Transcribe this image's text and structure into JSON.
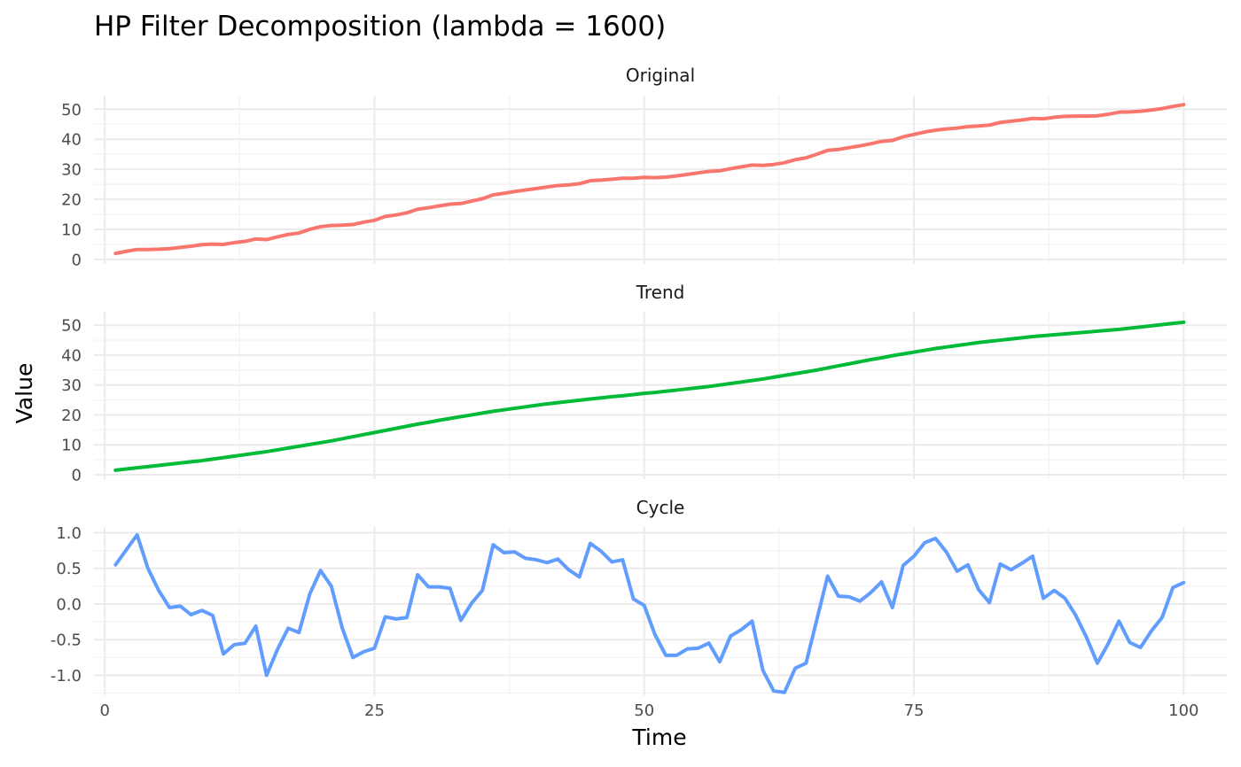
{
  "chart_data": {
    "type": "line",
    "title": "HP Filter Decomposition (lambda = 1600)",
    "xlabel": "Time",
    "ylabel": "Value",
    "x": [
      1,
      2,
      3,
      4,
      5,
      6,
      7,
      8,
      9,
      10,
      11,
      12,
      13,
      14,
      15,
      16,
      17,
      18,
      19,
      20,
      21,
      22,
      23,
      24,
      25,
      26,
      27,
      28,
      29,
      30,
      31,
      32,
      33,
      34,
      35,
      36,
      37,
      38,
      39,
      40,
      41,
      42,
      43,
      44,
      45,
      46,
      47,
      48,
      49,
      50,
      51,
      52,
      53,
      54,
      55,
      56,
      57,
      58,
      59,
      60,
      61,
      62,
      63,
      64,
      65,
      66,
      67,
      68,
      69,
      70,
      71,
      72,
      73,
      74,
      75,
      76,
      77,
      78,
      79,
      80,
      81,
      82,
      83,
      84,
      85,
      86,
      87,
      88,
      89,
      90,
      91,
      92,
      93,
      94,
      95,
      96,
      97,
      98,
      99,
      100
    ],
    "xlim": [
      -1,
      104
    ],
    "x_ticks": [
      {
        "value": 0,
        "label": "0"
      },
      {
        "value": 25,
        "label": "25"
      },
      {
        "value": 50,
        "label": "50"
      },
      {
        "value": 75,
        "label": "75"
      },
      {
        "value": 100,
        "label": "100"
      }
    ],
    "x_minor_ticks": [
      12.5,
      37.5,
      62.5,
      87.5
    ],
    "grid": true,
    "legend": "none",
    "panels": [
      {
        "name": "Original",
        "color": "#F8766D",
        "ylim": [
          -1.5,
          54.5
        ],
        "y_ticks": [
          {
            "value": 0,
            "label": "0"
          },
          {
            "value": 10,
            "label": "10"
          },
          {
            "value": 20,
            "label": "20"
          },
          {
            "value": 30,
            "label": "30"
          },
          {
            "value": 40,
            "label": "40"
          },
          {
            "value": 50,
            "label": "50"
          }
        ],
        "y_minor_ticks": [
          5,
          15,
          25,
          35,
          45
        ],
        "values": [
          2.0,
          2.7,
          3.3,
          3.3,
          3.4,
          3.6,
          4.0,
          4.4,
          4.9,
          5.1,
          5.0,
          5.6,
          6.0,
          6.8,
          6.6,
          7.5,
          8.3,
          8.8,
          10.0,
          10.9,
          11.3,
          11.4,
          11.6,
          12.4,
          13.0,
          14.3,
          14.8,
          15.5,
          16.7,
          17.2,
          17.8,
          18.4,
          18.6,
          19.4,
          20.2,
          21.5,
          22.0,
          22.6,
          23.1,
          23.6,
          24.1,
          24.6,
          24.8,
          25.2,
          26.2,
          26.4,
          26.7,
          27.0,
          27.0,
          27.3,
          27.2,
          27.4,
          27.8,
          28.3,
          28.8,
          29.3,
          29.5,
          30.2,
          30.8,
          31.4,
          31.3,
          31.6,
          32.2,
          33.2,
          33.8,
          35.0,
          36.3,
          36.6,
          37.2,
          37.8,
          38.5,
          39.3,
          39.6,
          40.8,
          41.6,
          42.4,
          43.0,
          43.4,
          43.7,
          44.2,
          44.4,
          44.7,
          45.6,
          46.0,
          46.4,
          46.9,
          46.8,
          47.3,
          47.6,
          47.7,
          47.7,
          47.8,
          48.3,
          49.0,
          49.1,
          49.3,
          49.7,
          50.2,
          50.9,
          51.5
        ]
      },
      {
        "name": "Trend",
        "color": "#00BA38",
        "ylim": [
          -1.5,
          54.5
        ],
        "y_ticks": [
          {
            "value": 0,
            "label": "0"
          },
          {
            "value": 10,
            "label": "10"
          },
          {
            "value": 20,
            "label": "20"
          },
          {
            "value": 30,
            "label": "30"
          },
          {
            "value": 40,
            "label": "40"
          },
          {
            "value": 50,
            "label": "50"
          }
        ],
        "y_minor_ticks": [
          5,
          15,
          25,
          35,
          45
        ],
        "values": [
          1.5,
          1.9,
          2.3,
          2.7,
          3.1,
          3.5,
          3.9,
          4.3,
          4.7,
          5.2,
          5.7,
          6.2,
          6.7,
          7.2,
          7.7,
          8.3,
          8.9,
          9.5,
          10.1,
          10.7,
          11.3,
          12.0,
          12.7,
          13.4,
          14.1,
          14.8,
          15.5,
          16.2,
          16.9,
          17.5,
          18.2,
          18.8,
          19.4,
          20.0,
          20.6,
          21.2,
          21.7,
          22.2,
          22.7,
          23.2,
          23.7,
          24.1,
          24.5,
          24.9,
          25.3,
          25.7,
          26.1,
          26.4,
          26.8,
          27.2,
          27.5,
          27.9,
          28.3,
          28.7,
          29.1,
          29.5,
          30.0,
          30.5,
          31.0,
          31.5,
          32.0,
          32.6,
          33.2,
          33.8,
          34.4,
          35.0,
          35.7,
          36.4,
          37.1,
          37.8,
          38.5,
          39.1,
          39.8,
          40.4,
          41.0,
          41.6,
          42.2,
          42.7,
          43.2,
          43.7,
          44.2,
          44.6,
          45.0,
          45.4,
          45.8,
          46.2,
          46.5,
          46.8,
          47.1,
          47.4,
          47.7,
          48.0,
          48.3,
          48.6,
          49.0,
          49.4,
          49.8,
          50.2,
          50.6,
          51.0
        ]
      },
      {
        "name": "Cycle",
        "color": "#619CFF",
        "ylim": [
          -1.28,
          1.08
        ],
        "y_ticks": [
          {
            "value": -1.0,
            "label": "-1.0"
          },
          {
            "value": -0.5,
            "label": "-0.5"
          },
          {
            "value": 0.0,
            "label": "0.0"
          },
          {
            "value": 0.5,
            "label": "0.5"
          },
          {
            "value": 1.0,
            "label": "1.0"
          }
        ],
        "y_minor_ticks": [
          -1.25,
          -0.75,
          -0.25,
          0.25,
          0.75
        ],
        "values": [
          0.55,
          0.76,
          0.97,
          0.5,
          0.19,
          -0.05,
          -0.03,
          -0.15,
          -0.09,
          -0.16,
          -0.7,
          -0.57,
          -0.55,
          -0.31,
          -1.0,
          -0.64,
          -0.34,
          -0.4,
          0.14,
          0.47,
          0.25,
          -0.33,
          -0.75,
          -0.67,
          -0.62,
          -0.18,
          -0.21,
          -0.19,
          0.41,
          0.24,
          0.24,
          0.22,
          -0.23,
          0.01,
          0.19,
          0.83,
          0.72,
          0.73,
          0.64,
          0.62,
          0.58,
          0.63,
          0.48,
          0.38,
          0.85,
          0.74,
          0.59,
          0.62,
          0.07,
          -0.02,
          -0.43,
          -0.72,
          -0.72,
          -0.63,
          -0.62,
          -0.55,
          -0.81,
          -0.45,
          -0.36,
          -0.24,
          -0.93,
          -1.22,
          -1.24,
          -0.9,
          -0.83,
          -0.22,
          0.39,
          0.11,
          0.1,
          0.04,
          0.16,
          0.31,
          -0.05,
          0.54,
          0.67,
          0.86,
          0.92,
          0.73,
          0.46,
          0.55,
          0.2,
          0.02,
          0.56,
          0.48,
          0.57,
          0.67,
          0.08,
          0.19,
          0.08,
          -0.16,
          -0.47,
          -0.83,
          -0.56,
          -0.24,
          -0.54,
          -0.61,
          -0.38,
          -0.19,
          0.23,
          0.3
        ]
      }
    ]
  }
}
